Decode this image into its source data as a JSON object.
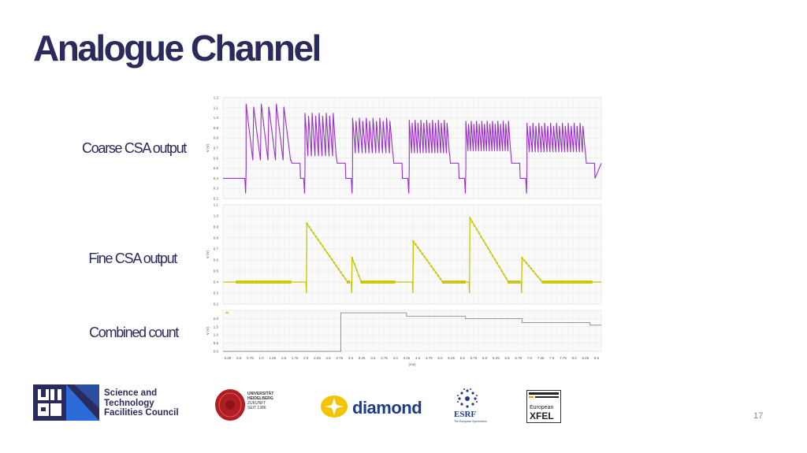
{
  "slide": {
    "title": "Analogue Channel",
    "page_number": "17"
  },
  "panel_labels": {
    "coarse": "Coarse CSA output",
    "fine": "Fine CSA output",
    "combined": "Combined count"
  },
  "logos": {
    "stfc": {
      "lines": [
        "Science and",
        "Technology",
        "Facilities Council"
      ]
    },
    "uni": {
      "lines": [
        "UNIVERSITÄT",
        "HEIDELBERG",
        "ZUKUNFT",
        "SEIT 1386"
      ]
    },
    "diamond": {
      "text": "diamond"
    },
    "esrf": {
      "text": "ESRF",
      "sub": "The European Synchrotron"
    },
    "xfel": {
      "line1": "European",
      "line2": "XFEL"
    }
  },
  "colors": {
    "title": "#2b2a5c",
    "coarse_trace": "#9a2fcb",
    "fine_trace": "#c9c400",
    "count_trace": "#8a8a8a"
  },
  "chart_data": [
    {
      "type": "line",
      "panel": "coarse",
      "ylabel": "V (V)",
      "ylim": [
        0.2,
        1.2
      ],
      "yticks": [
        "0.2",
        "0.3",
        "0.4",
        "0.5",
        "0.6",
        "0.7",
        "0.8",
        "0.9",
        "1.0",
        "1.1",
        "1.2"
      ],
      "xlim": [
        0.25,
        8.6
      ],
      "baseline": 0.4,
      "reset_level": 0.55,
      "bursts": [
        {
          "start": 0.75,
          "end": 1.75,
          "peak": 1.14,
          "low": 0.58,
          "n": 6
        },
        {
          "start": 2.05,
          "end": 2.75,
          "peak": 1.05,
          "low": 0.62,
          "n": 9
        },
        {
          "start": 3.1,
          "end": 4.0,
          "peak": 1.0,
          "low": 0.65,
          "n": 12
        },
        {
          "start": 4.35,
          "end": 5.25,
          "peak": 0.98,
          "low": 0.65,
          "n": 14
        },
        {
          "start": 5.6,
          "end": 6.6,
          "peak": 0.97,
          "low": 0.67,
          "n": 17
        },
        {
          "start": 6.95,
          "end": 8.25,
          "peak": 0.95,
          "low": 0.66,
          "n": 20
        }
      ],
      "grid": true
    },
    {
      "type": "line",
      "panel": "fine",
      "ylabel": "V (V)",
      "ylim": [
        0.2,
        1.1
      ],
      "yticks": [
        "0.2",
        "0.3",
        "0.4",
        "0.5",
        "0.6",
        "0.7",
        "0.8",
        "0.9",
        "1.0",
        "1.1"
      ],
      "xlim": [
        0.25,
        8.6
      ],
      "baseline": 0.4,
      "ramps": [
        {
          "start": 2.1,
          "peak": 0.93,
          "end": 3.0
        },
        {
          "start": 3.1,
          "peak": 0.62,
          "end": 3.3
        },
        {
          "start": 4.45,
          "peak": 0.77,
          "end": 5.1
        },
        {
          "start": 5.7,
          "peak": 0.98,
          "end": 6.55
        },
        {
          "start": 6.85,
          "peak": 0.62,
          "end": 7.3
        }
      ],
      "grid": true
    },
    {
      "type": "line",
      "panel": "combined",
      "ylabel": "V (V)",
      "ylim": [
        0,
        2.5
      ],
      "yticks": [
        "0.0",
        "0.5",
        "1.0",
        "1.5",
        "2.0"
      ],
      "xlim": [
        0.25,
        8.6
      ],
      "x_ticks": [
        "0.25",
        "0.5",
        "0.75",
        "1.0",
        "1.25",
        "1.5",
        "1.75",
        "2.0",
        "2.25",
        "2.5",
        "2.75",
        "3.0",
        "3.25",
        "3.5",
        "3.75",
        "4.0",
        "4.25",
        "4.5",
        "4.75",
        "5.0",
        "5.25",
        "5.5",
        "5.75",
        "6.0",
        "6.25",
        "6.5",
        "6.75",
        "7.0",
        "7.25",
        "7.5",
        "7.75",
        "8.0",
        "8.25",
        "8.6"
      ],
      "xlabel": "(ms)",
      "steps": [
        {
          "x": 0.25,
          "y": 0.0
        },
        {
          "x": 2.85,
          "y": 2.35
        },
        {
          "x": 4.3,
          "y": 2.15
        },
        {
          "x": 5.6,
          "y": 2.0
        },
        {
          "x": 6.85,
          "y": 1.75
        },
        {
          "x": 8.35,
          "y": 1.6
        }
      ],
      "grid": true
    }
  ]
}
